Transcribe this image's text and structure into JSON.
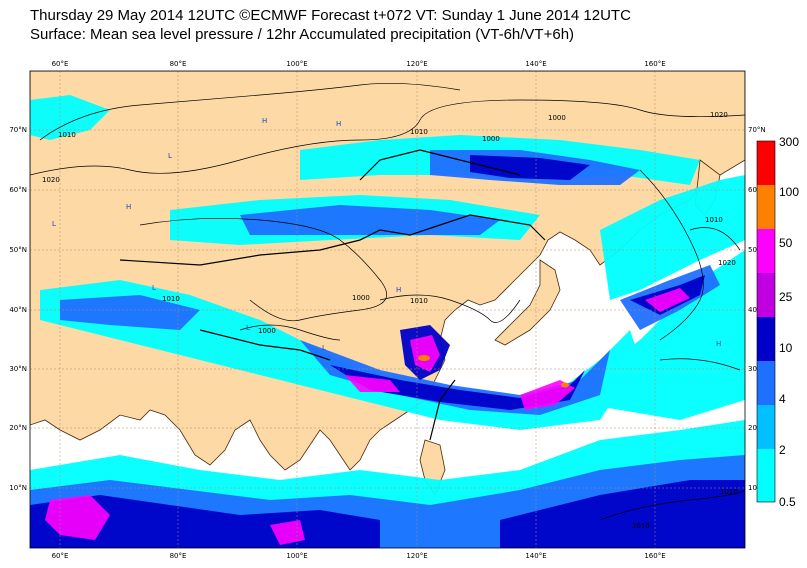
{
  "header": {
    "line1": "Thursday 29 May 2014 12UTC ©ECMWF Forecast t+072 VT: Sunday 1 June 2014 12UTC",
    "line2": "Surface: Mean sea level pressure / 12hr Accumulated precipitation (VT-6h/VT+6h)"
  },
  "map": {
    "lon_ticks": [
      "60°E",
      "80°E",
      "100°E",
      "120°E",
      "140°E",
      "160°E"
    ],
    "lat_ticks": [
      "70°N",
      "60°N",
      "50°N",
      "40°N",
      "30°N",
      "20°N",
      "10°N"
    ],
    "lat_ticks_right": [
      "70°N",
      "60",
      "50",
      "40",
      "30",
      "20",
      "10°N"
    ],
    "isobar_labels": [
      "1010",
      "1020",
      "1010",
      "1000",
      "1000",
      "1010",
      "1010",
      "1000",
      "1000",
      "1010",
      "1020",
      "1020",
      "1010",
      "1010"
    ],
    "pressure_centers": [
      "H",
      "H",
      "H",
      "L",
      "L",
      "L",
      "H",
      "L",
      "L",
      "H"
    ],
    "colors": {
      "land": "#fdd9a6",
      "sea": "#ffffff",
      "coast": "#4a2808",
      "graticule": "#b08a6a",
      "isobar": "#000000"
    }
  },
  "colorbar": {
    "labels": [
      "300",
      "100",
      "50",
      "25",
      "10",
      "4",
      "2",
      "0.5"
    ],
    "colors": [
      "#ff0000",
      "#ff8000",
      "#ff00ff",
      "#c000e0",
      "#0000c8",
      "#2070ff",
      "#00c0ff",
      "#00ffff"
    ]
  }
}
